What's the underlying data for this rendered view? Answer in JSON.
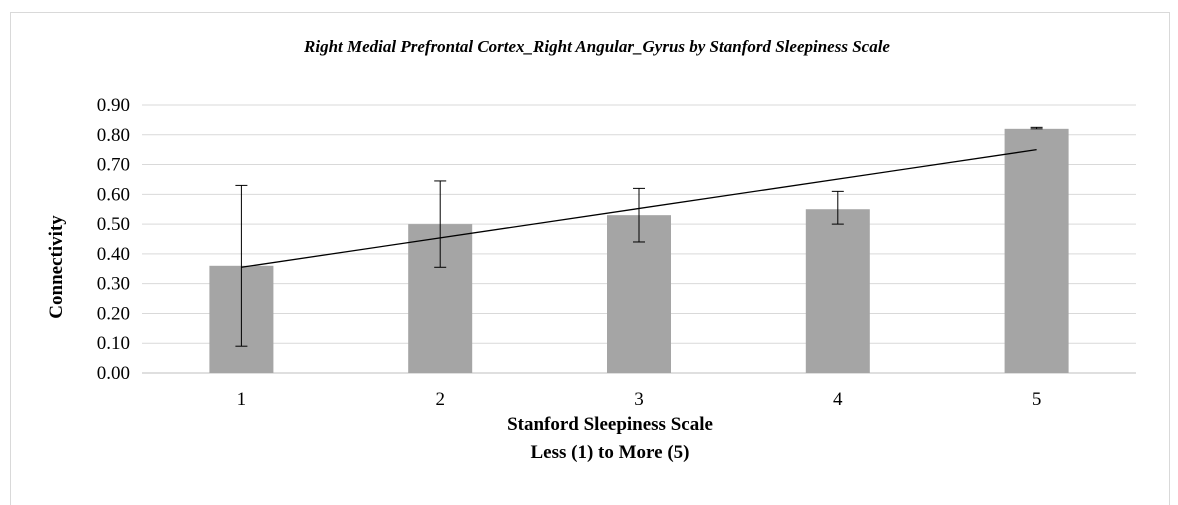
{
  "chart_data": {
    "type": "bar",
    "title": "Right Medial Prefrontal Cortex_Right Angular_Gyrus by Stanford Sleepiness Scale",
    "xlabel": [
      "Stanford Sleepiness Scale",
      "Less (1) to More (5)"
    ],
    "ylabel": "Connectivity",
    "categories": [
      "1",
      "2",
      "3",
      "4",
      "5"
    ],
    "values": [
      0.36,
      0.5,
      0.53,
      0.55,
      0.82
    ],
    "error_low": [
      0.09,
      0.355,
      0.44,
      0.5,
      0.82
    ],
    "error_high": [
      0.63,
      0.645,
      0.62,
      0.61,
      0.825
    ],
    "trendline": {
      "type": "linear",
      "start": 0.355,
      "end": 0.75
    },
    "ylim": [
      0,
      0.9
    ],
    "yticks": [
      "0.00",
      "0.10",
      "0.20",
      "0.30",
      "0.40",
      "0.50",
      "0.60",
      "0.70",
      "0.80",
      "0.90"
    ],
    "grid": true,
    "legend": "none",
    "colors": {
      "bar": "#a5a5a5",
      "grid": "#d9d9d9",
      "error": "#000000",
      "trend": "#000000"
    }
  }
}
